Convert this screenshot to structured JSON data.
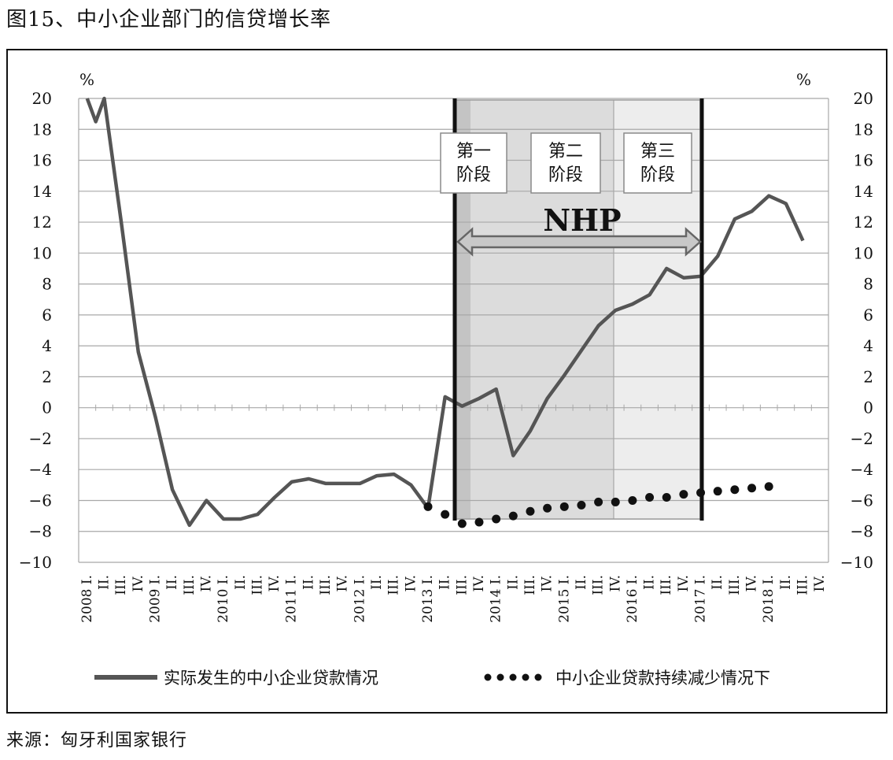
{
  "figure_title": "图15、中小企业部门的信贷增长率",
  "source": "来源：匈牙利国家银行",
  "chart_data": {
    "type": "line",
    "title": "",
    "ylabel_left": "%",
    "ylabel_right": "%",
    "ylim": [
      -10,
      20
    ],
    "yticks": [
      -10,
      -8,
      -6,
      -4,
      -2,
      0,
      2,
      4,
      6,
      8,
      10,
      12,
      14,
      16,
      18,
      20
    ],
    "ytick_labels": [
      "−10",
      "−8",
      "−6",
      "−4",
      "−2",
      "0",
      "2",
      "4",
      "6",
      "8",
      "10",
      "12",
      "14",
      "16",
      "18",
      "20"
    ],
    "grid": true,
    "x_labels": [
      "2008 I.",
      "II.",
      "III.",
      "IV.",
      "2009 I.",
      "II.",
      "III.",
      "IV.",
      "2010 I.",
      "II.",
      "III.",
      "IV.",
      "2011 I.",
      "II.",
      "III.",
      "IV.",
      "2012 I.",
      "II.",
      "III.",
      "IV.",
      "2013 I.",
      "II.",
      "III.",
      "IV.",
      "2014 I.",
      "II.",
      "III.",
      "IV.",
      "2015 I.",
      "II.",
      "III.",
      "IV.",
      "2016 I.",
      "II.",
      "III.",
      "IV.",
      "2017 I.",
      "II.",
      "III.",
      "IV.",
      "2018 I.",
      "II.",
      "III.",
      "IV."
    ],
    "series": [
      {
        "name": "实际发生的中小企业贷款情况",
        "style": "line",
        "color": "#555555",
        "points": [
          [
            0,
            20
          ],
          [
            0.5,
            18.5
          ],
          [
            1,
            20
          ],
          [
            2,
            12
          ],
          [
            3,
            3.6
          ],
          [
            4,
            -0.6
          ],
          [
            5,
            -5.3
          ],
          [
            6,
            -7.6
          ],
          [
            7,
            -6
          ],
          [
            8,
            -7.2
          ],
          [
            9,
            -7.2
          ],
          [
            10,
            -6.9
          ],
          [
            11,
            -5.8
          ],
          [
            12,
            -4.8
          ],
          [
            13,
            -4.6
          ],
          [
            14,
            -4.9
          ],
          [
            15,
            -4.9
          ],
          [
            16,
            -4.9
          ],
          [
            17,
            -4.4
          ],
          [
            18,
            -4.3
          ],
          [
            19,
            -5
          ],
          [
            20,
            -6.5
          ],
          [
            21,
            0.7
          ],
          [
            22,
            0.1
          ],
          [
            23,
            0.6
          ],
          [
            24,
            1.2
          ],
          [
            25,
            -3.1
          ],
          [
            26,
            -1.5
          ],
          [
            27,
            0.6
          ],
          [
            28,
            2.1
          ],
          [
            29,
            3.7
          ],
          [
            30,
            5.3
          ],
          [
            31,
            6.3
          ],
          [
            32,
            6.7
          ],
          [
            33,
            7.3
          ],
          [
            34,
            9
          ],
          [
            35,
            8.4
          ],
          [
            36,
            8.5
          ],
          [
            37,
            9.8
          ],
          [
            38,
            12.2
          ],
          [
            39,
            12.7
          ],
          [
            40,
            13.7
          ],
          [
            41,
            13.2
          ],
          [
            42,
            10.8
          ]
        ]
      },
      {
        "name": "中小企业贷款持续减少情况下",
        "style": "dots",
        "color": "#111111",
        "points": [
          [
            20,
            -6.4
          ],
          [
            21,
            -6.9
          ],
          [
            22,
            -7.5
          ],
          [
            23,
            -7.4
          ],
          [
            24,
            -7.2
          ],
          [
            25,
            -7.0
          ],
          [
            26,
            -6.7
          ],
          [
            27,
            -6.5
          ],
          [
            28,
            -6.4
          ],
          [
            29,
            -6.3
          ],
          [
            30,
            -6.1
          ],
          [
            31,
            -6.1
          ],
          [
            32,
            -6.0
          ],
          [
            33,
            -5.8
          ],
          [
            34,
            -5.8
          ],
          [
            35,
            -5.6
          ],
          [
            36,
            -5.5
          ],
          [
            37,
            -5.4
          ],
          [
            38,
            -5.3
          ],
          [
            39,
            -5.2
          ],
          [
            40,
            -5.1
          ]
        ]
      }
    ],
    "annotations": {
      "program_label": "NHP",
      "stages": [
        {
          "line1": "第一",
          "line2": "阶段"
        },
        {
          "line1": "第二",
          "line2": "阶段"
        },
        {
          "line1": "第三",
          "line2": "阶段"
        }
      ]
    },
    "legend_position": "bottom"
  }
}
